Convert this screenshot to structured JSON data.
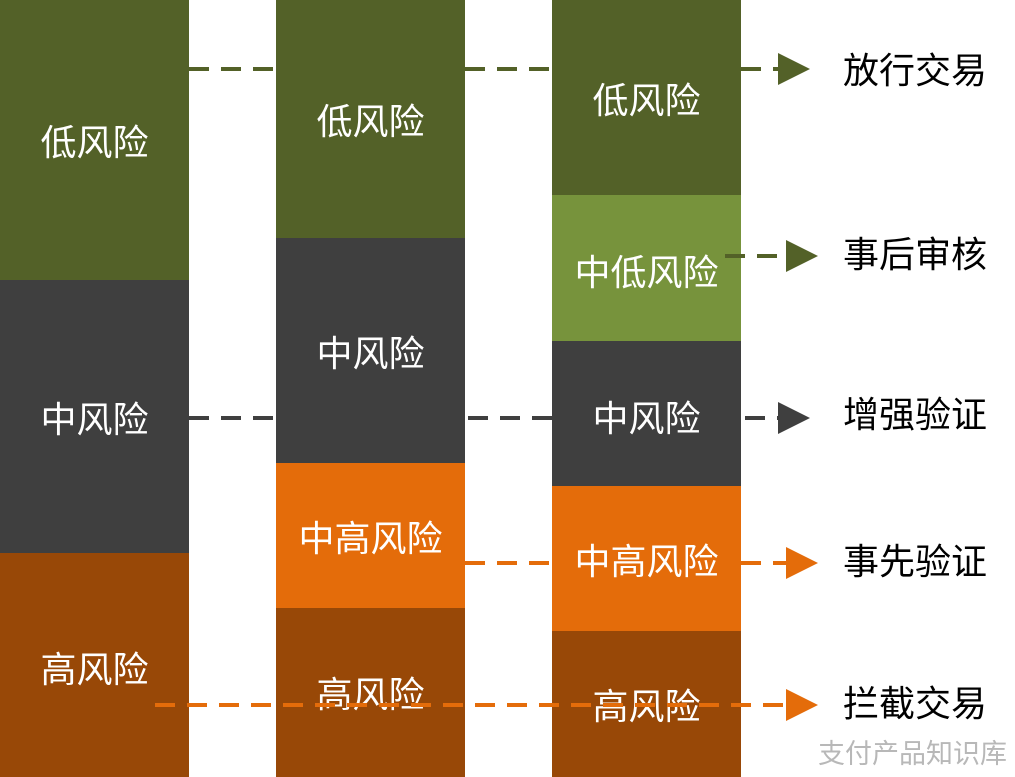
{
  "colors": {
    "low": "#536128",
    "mid_low": "#77933c",
    "mid": "#3f3f3f",
    "mid_high": "#e46c0a",
    "high": "#984807"
  },
  "columns": [
    {
      "blocks": [
        {
          "label": "低风险",
          "level": "low"
        },
        {
          "label": "中风险",
          "level": "mid"
        },
        {
          "label": "高风险",
          "level": "high"
        }
      ]
    },
    {
      "blocks": [
        {
          "label": "低风险",
          "level": "low"
        },
        {
          "label": "中风险",
          "level": "mid"
        },
        {
          "label": "中高风险",
          "level": "mid_high"
        },
        {
          "label": "高风险",
          "level": "high"
        }
      ]
    },
    {
      "blocks": [
        {
          "label": "低风险",
          "level": "low"
        },
        {
          "label": "中低风险",
          "level": "mid_low"
        },
        {
          "label": "中风险",
          "level": "mid"
        },
        {
          "label": "中高风险",
          "level": "mid_high"
        },
        {
          "label": "高风险",
          "level": "high"
        }
      ]
    }
  ],
  "actions": [
    {
      "label": "放行交易",
      "level": "low"
    },
    {
      "label": "事后审核",
      "level": "low"
    },
    {
      "label": "增强验证",
      "level": "mid"
    },
    {
      "label": "事先验证",
      "level": "mid_high"
    },
    {
      "label": "拦截交易",
      "level": "mid_high"
    }
  ],
  "watermark": "支付产品知识库"
}
